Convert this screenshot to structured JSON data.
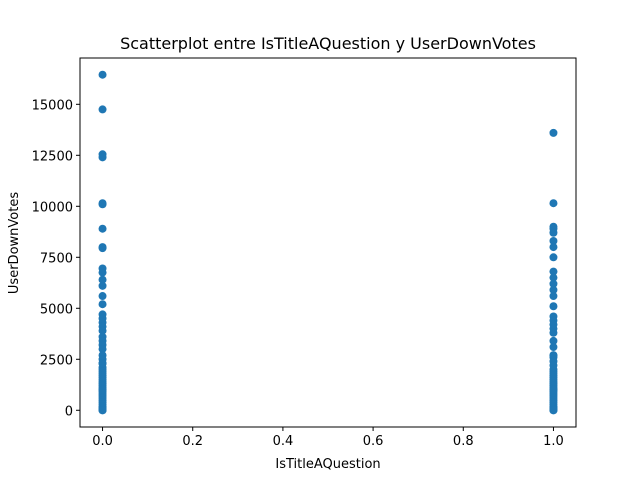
{
  "chart_data": {
    "type": "scatter",
    "title": "Scatterplot entre IsTitleAQuestion y UserDownVotes",
    "xlabel": "IsTitleAQuestion",
    "ylabel": "UserDownVotes",
    "color": "#1f77b4",
    "x": [
      0,
      0,
      0,
      0,
      0,
      0,
      0,
      0,
      0,
      0,
      0,
      0,
      0,
      0,
      0,
      0,
      0,
      0,
      0,
      0,
      0,
      0,
      0,
      0,
      0,
      0,
      0,
      0,
      0,
      0,
      0,
      0,
      0,
      0,
      0,
      0,
      0,
      0,
      0,
      0,
      0,
      0,
      0,
      0,
      0,
      0,
      0,
      0,
      0,
      0,
      0,
      0,
      0,
      0,
      1,
      1,
      1,
      1,
      1,
      1,
      1,
      1,
      1,
      1,
      1,
      1,
      1,
      1,
      1,
      1,
      1,
      1,
      1,
      1,
      1,
      1,
      1,
      1,
      1,
      1,
      1,
      1,
      1,
      1,
      1,
      1,
      1,
      1,
      1,
      1,
      1,
      1,
      1,
      1,
      1,
      1,
      1,
      1,
      1,
      1,
      1,
      1,
      1,
      1,
      1
    ],
    "values": [
      16450,
      14750,
      12550,
      12400,
      10150,
      10100,
      8900,
      8000,
      7950,
      6950,
      6750,
      6400,
      6100,
      5600,
      5200,
      4700,
      4500,
      4300,
      4100,
      3900,
      3600,
      3400,
      3200,
      3000,
      2700,
      2500,
      2300,
      2100,
      2000,
      1900,
      1800,
      1700,
      1600,
      1500,
      1400,
      1300,
      1200,
      1100,
      1000,
      900,
      800,
      700,
      600,
      500,
      400,
      300,
      200,
      150,
      100,
      50,
      0,
      2300,
      1000,
      0,
      13600,
      10150,
      9000,
      8900,
      8700,
      8300,
      8000,
      7500,
      6800,
      6500,
      6200,
      5900,
      5600,
      5100,
      4600,
      4400,
      4200,
      4000,
      3800,
      3400,
      3100,
      2700,
      2600,
      2400,
      2200,
      2000,
      1900,
      1800,
      1700,
      1600,
      1500,
      1400,
      1300,
      1200,
      1100,
      1000,
      900,
      800,
      700,
      600,
      500,
      400,
      300,
      200,
      150,
      100,
      50,
      0,
      2700,
      1000,
      0
    ],
    "xlim": [
      -0.05,
      1.05
    ],
    "ylim": [
      -820,
      17270
    ],
    "xticks": [
      {
        "value": 0,
        "label": "0.0"
      },
      0.2,
      0.4,
      0.6,
      0.8,
      {
        "value": 1,
        "label": "1.0"
      }
    ],
    "yticks": [
      0,
      2500,
      5000,
      7500,
      10000,
      12500,
      15000
    ]
  }
}
